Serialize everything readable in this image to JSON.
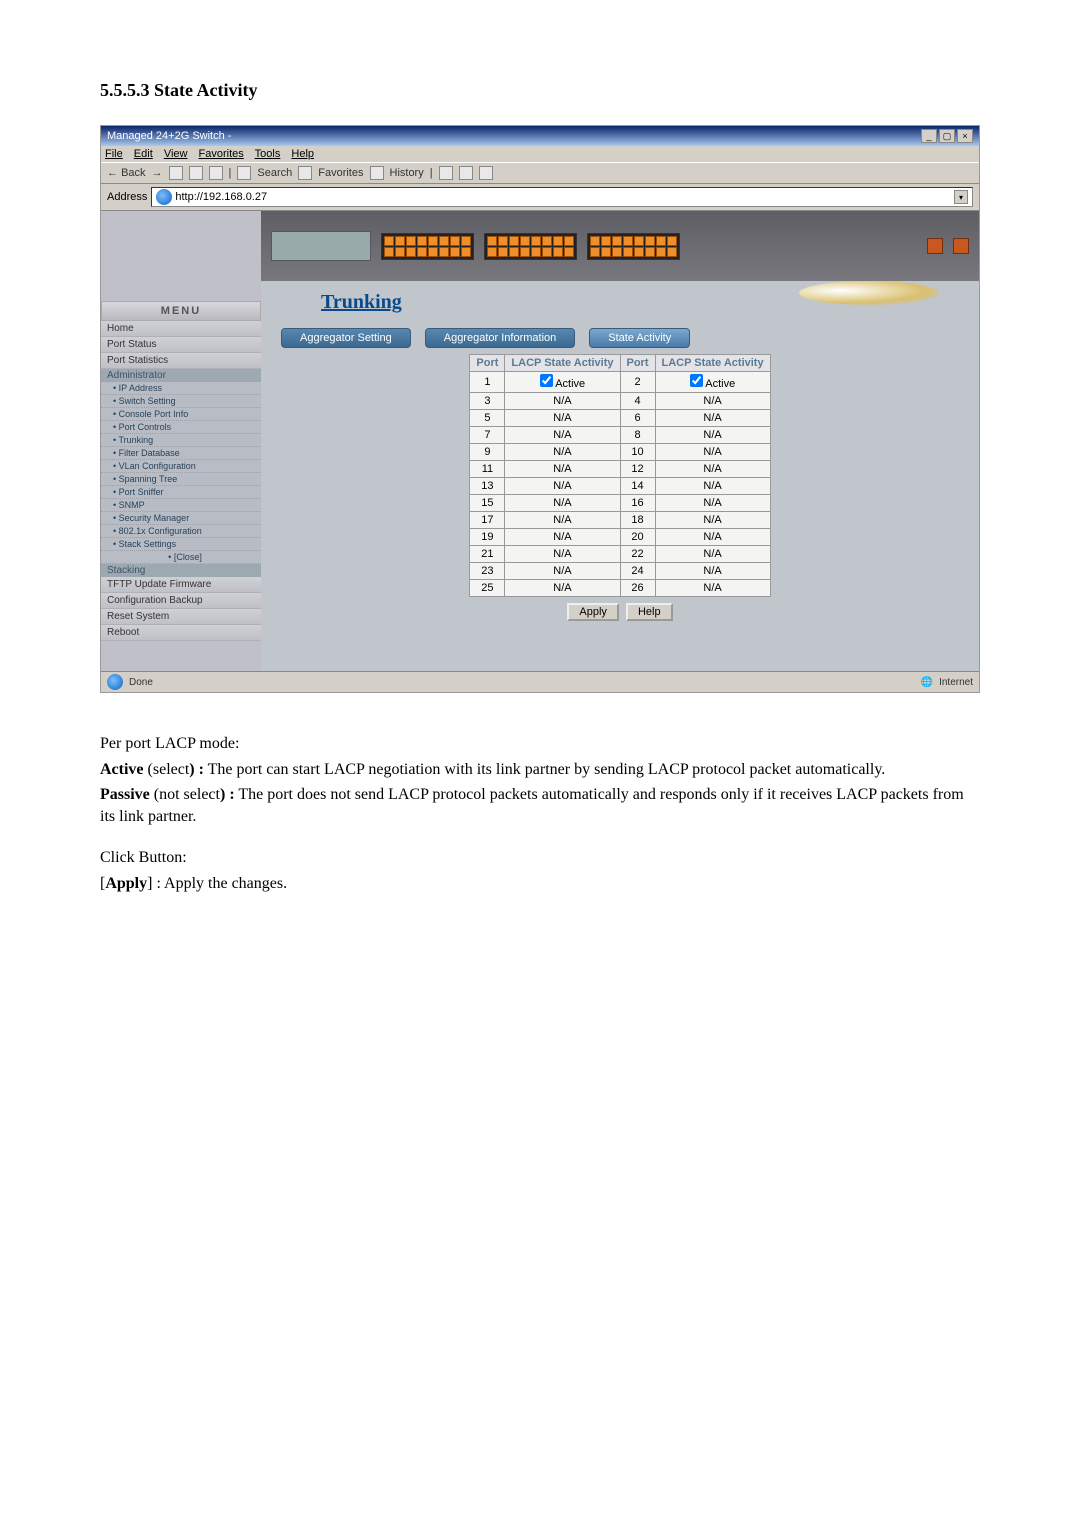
{
  "section": {
    "number": "5.5.5.3",
    "title": "State Activity"
  },
  "browser": {
    "title": "Managed 24+2G Switch -",
    "menus": [
      "File",
      "Edit",
      "View",
      "Favorites",
      "Tools",
      "Help"
    ],
    "toolbar": {
      "back": "Back",
      "search": "Search",
      "favorites": "Favorites",
      "history": "History"
    },
    "addressLabel": "Address",
    "addressValue": "http://192.168.0.27",
    "status": {
      "done": "Done",
      "zone": "Internet"
    }
  },
  "sidebar": {
    "menuHead": "MENU",
    "simple": [
      "Home",
      "Port Status",
      "Port Statistics"
    ],
    "adminHead": "Administrator",
    "adminItems": [
      "IP Address",
      "Switch Setting",
      "Console Port Info",
      "Port Controls",
      "Trunking",
      "Filter Database",
      "VLan Configuration",
      "Spanning Tree",
      "Port Sniffer",
      "SNMP",
      "Security Manager",
      "802.1x Configuration",
      "Stack Settings"
    ],
    "closeLabel": "[Close]",
    "stackHead": "Stacking",
    "tail": [
      "TFTP Update Firmware",
      "Configuration Backup",
      "Reset System",
      "Reboot"
    ]
  },
  "panel": {
    "pageTitle": "Trunking",
    "tabs": [
      {
        "label": "Aggregator Setting",
        "active": false
      },
      {
        "label": "Aggregator Information",
        "active": false
      },
      {
        "label": "State Activity",
        "active": true
      }
    ],
    "table": {
      "headers": [
        "Port",
        "LACP State Activity",
        "Port",
        "LACP State Activity"
      ],
      "rows": [
        {
          "p1": "1",
          "a1": "Active",
          "chk1": true,
          "p2": "2",
          "a2": "Active",
          "chk2": true
        },
        {
          "p1": "3",
          "a1": "N/A",
          "p2": "4",
          "a2": "N/A"
        },
        {
          "p1": "5",
          "a1": "N/A",
          "p2": "6",
          "a2": "N/A"
        },
        {
          "p1": "7",
          "a1": "N/A",
          "p2": "8",
          "a2": "N/A"
        },
        {
          "p1": "9",
          "a1": "N/A",
          "p2": "10",
          "a2": "N/A"
        },
        {
          "p1": "11",
          "a1": "N/A",
          "p2": "12",
          "a2": "N/A"
        },
        {
          "p1": "13",
          "a1": "N/A",
          "p2": "14",
          "a2": "N/A"
        },
        {
          "p1": "15",
          "a1": "N/A",
          "p2": "16",
          "a2": "N/A"
        },
        {
          "p1": "17",
          "a1": "N/A",
          "p2": "18",
          "a2": "N/A"
        },
        {
          "p1": "19",
          "a1": "N/A",
          "p2": "20",
          "a2": "N/A"
        },
        {
          "p1": "21",
          "a1": "N/A",
          "p2": "22",
          "a2": "N/A"
        },
        {
          "p1": "23",
          "a1": "N/A",
          "p2": "24",
          "a2": "N/A"
        },
        {
          "p1": "25",
          "a1": "N/A",
          "p2": "26",
          "a2": "N/A"
        }
      ],
      "buttons": {
        "apply": "Apply",
        "help": "Help"
      }
    }
  },
  "bodyText": {
    "l1": "Per port LACP mode:",
    "l2a": "Active",
    "l2b": " (select",
    "l2c": ") :",
    "l2d": " The port can start LACP negotiation with its link partner by sending LACP protocol packet automatically.",
    "l3a": "Passive",
    "l3b": " (not select",
    "l3c": ") :",
    "l3d": " The port does not send LACP protocol packets automatically and responds only if it receives LACP packets from its link partner.",
    "l4": "Click Button:",
    "l5a": "[",
    "l5b": "Apply",
    "l5c": "] : Apply the changes."
  }
}
